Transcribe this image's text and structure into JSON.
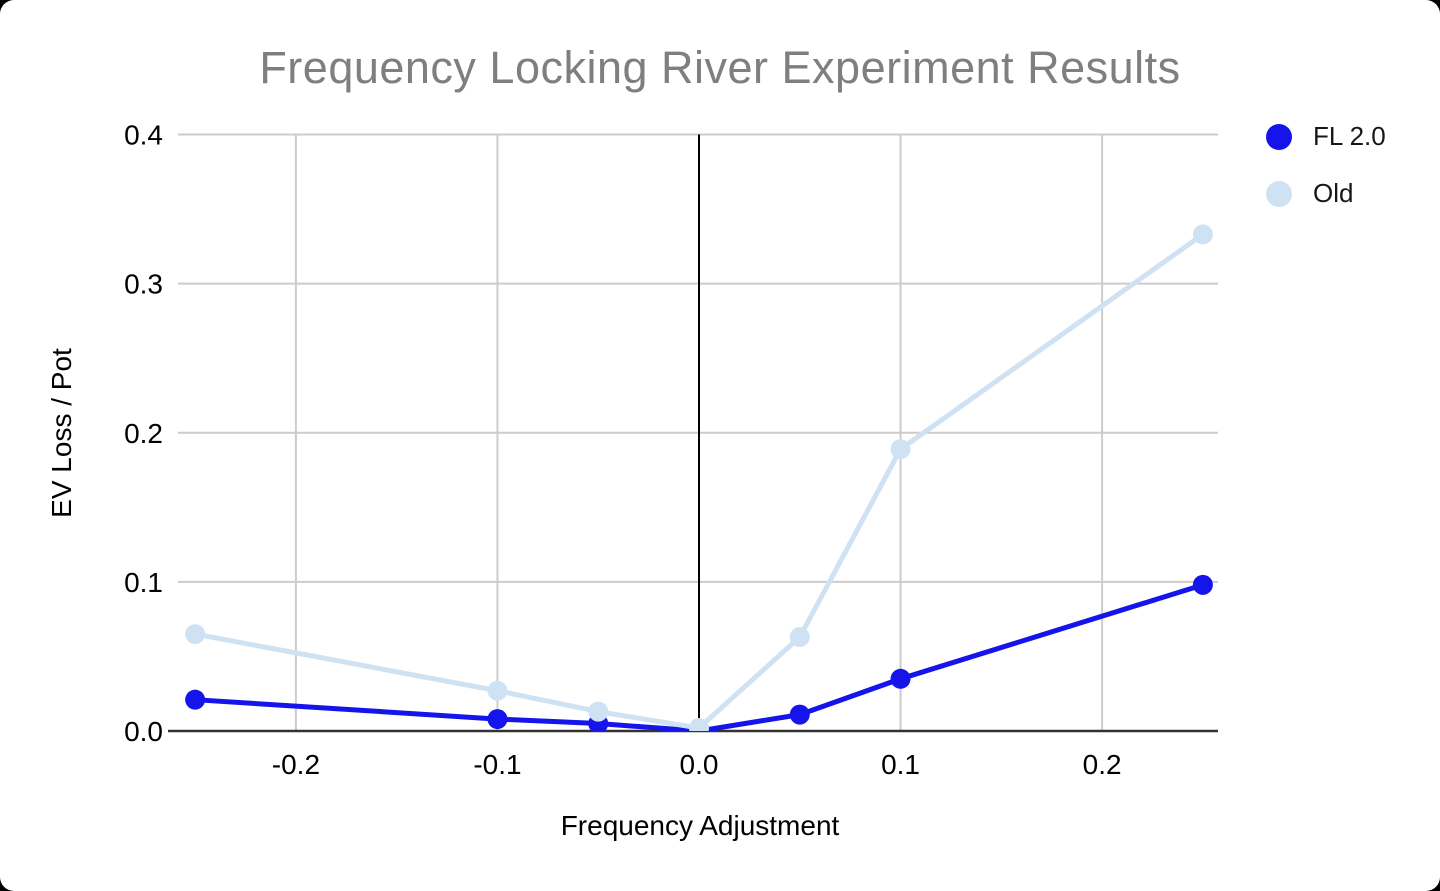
{
  "title": "Frequency Locking River Experiment Results",
  "chart_data": {
    "type": "line",
    "title": "Frequency Locking River Experiment Results",
    "xlabel": "Frequency Adjustment",
    "ylabel": "EV Loss / Pot",
    "x": [
      -0.25,
      -0.1,
      -0.05,
      0.0,
      0.05,
      0.1,
      0.25
    ],
    "series": [
      {
        "name": "FL 2.0",
        "color": "#1414eb",
        "values": [
          0.021,
          0.008,
          0.005,
          0.0,
          0.011,
          0.035,
          0.098
        ]
      },
      {
        "name": "Old",
        "color": "#cfe2f3",
        "values": [
          0.065,
          0.027,
          0.013,
          0.002,
          0.063,
          0.189,
          0.333
        ]
      }
    ],
    "xlim": [
      -0.2585,
      0.2575
    ],
    "ylim": [
      0.0,
      0.4
    ],
    "x_ticks": [
      -0.2,
      -0.1,
      0.0,
      0.1,
      0.2
    ],
    "x_tick_labels": [
      "-0.2",
      "-0.1",
      "0.0",
      "0.1",
      "0.2"
    ],
    "y_ticks": [
      0.0,
      0.1,
      0.2,
      0.3,
      0.4
    ],
    "y_tick_labels": [
      "0.0",
      "0.1",
      "0.2",
      "0.3",
      "0.4"
    ],
    "grid": true,
    "legend_position": "right"
  },
  "colors": {
    "title_gray": "#7f7f7f",
    "gridline": "#cccccc",
    "baseline": "#333333",
    "zero_line": "#000000",
    "tick_text": "#000000",
    "legend_text": "#171717",
    "fl20_blue": "#1414eb",
    "old_blue": "#cfe2f3"
  }
}
